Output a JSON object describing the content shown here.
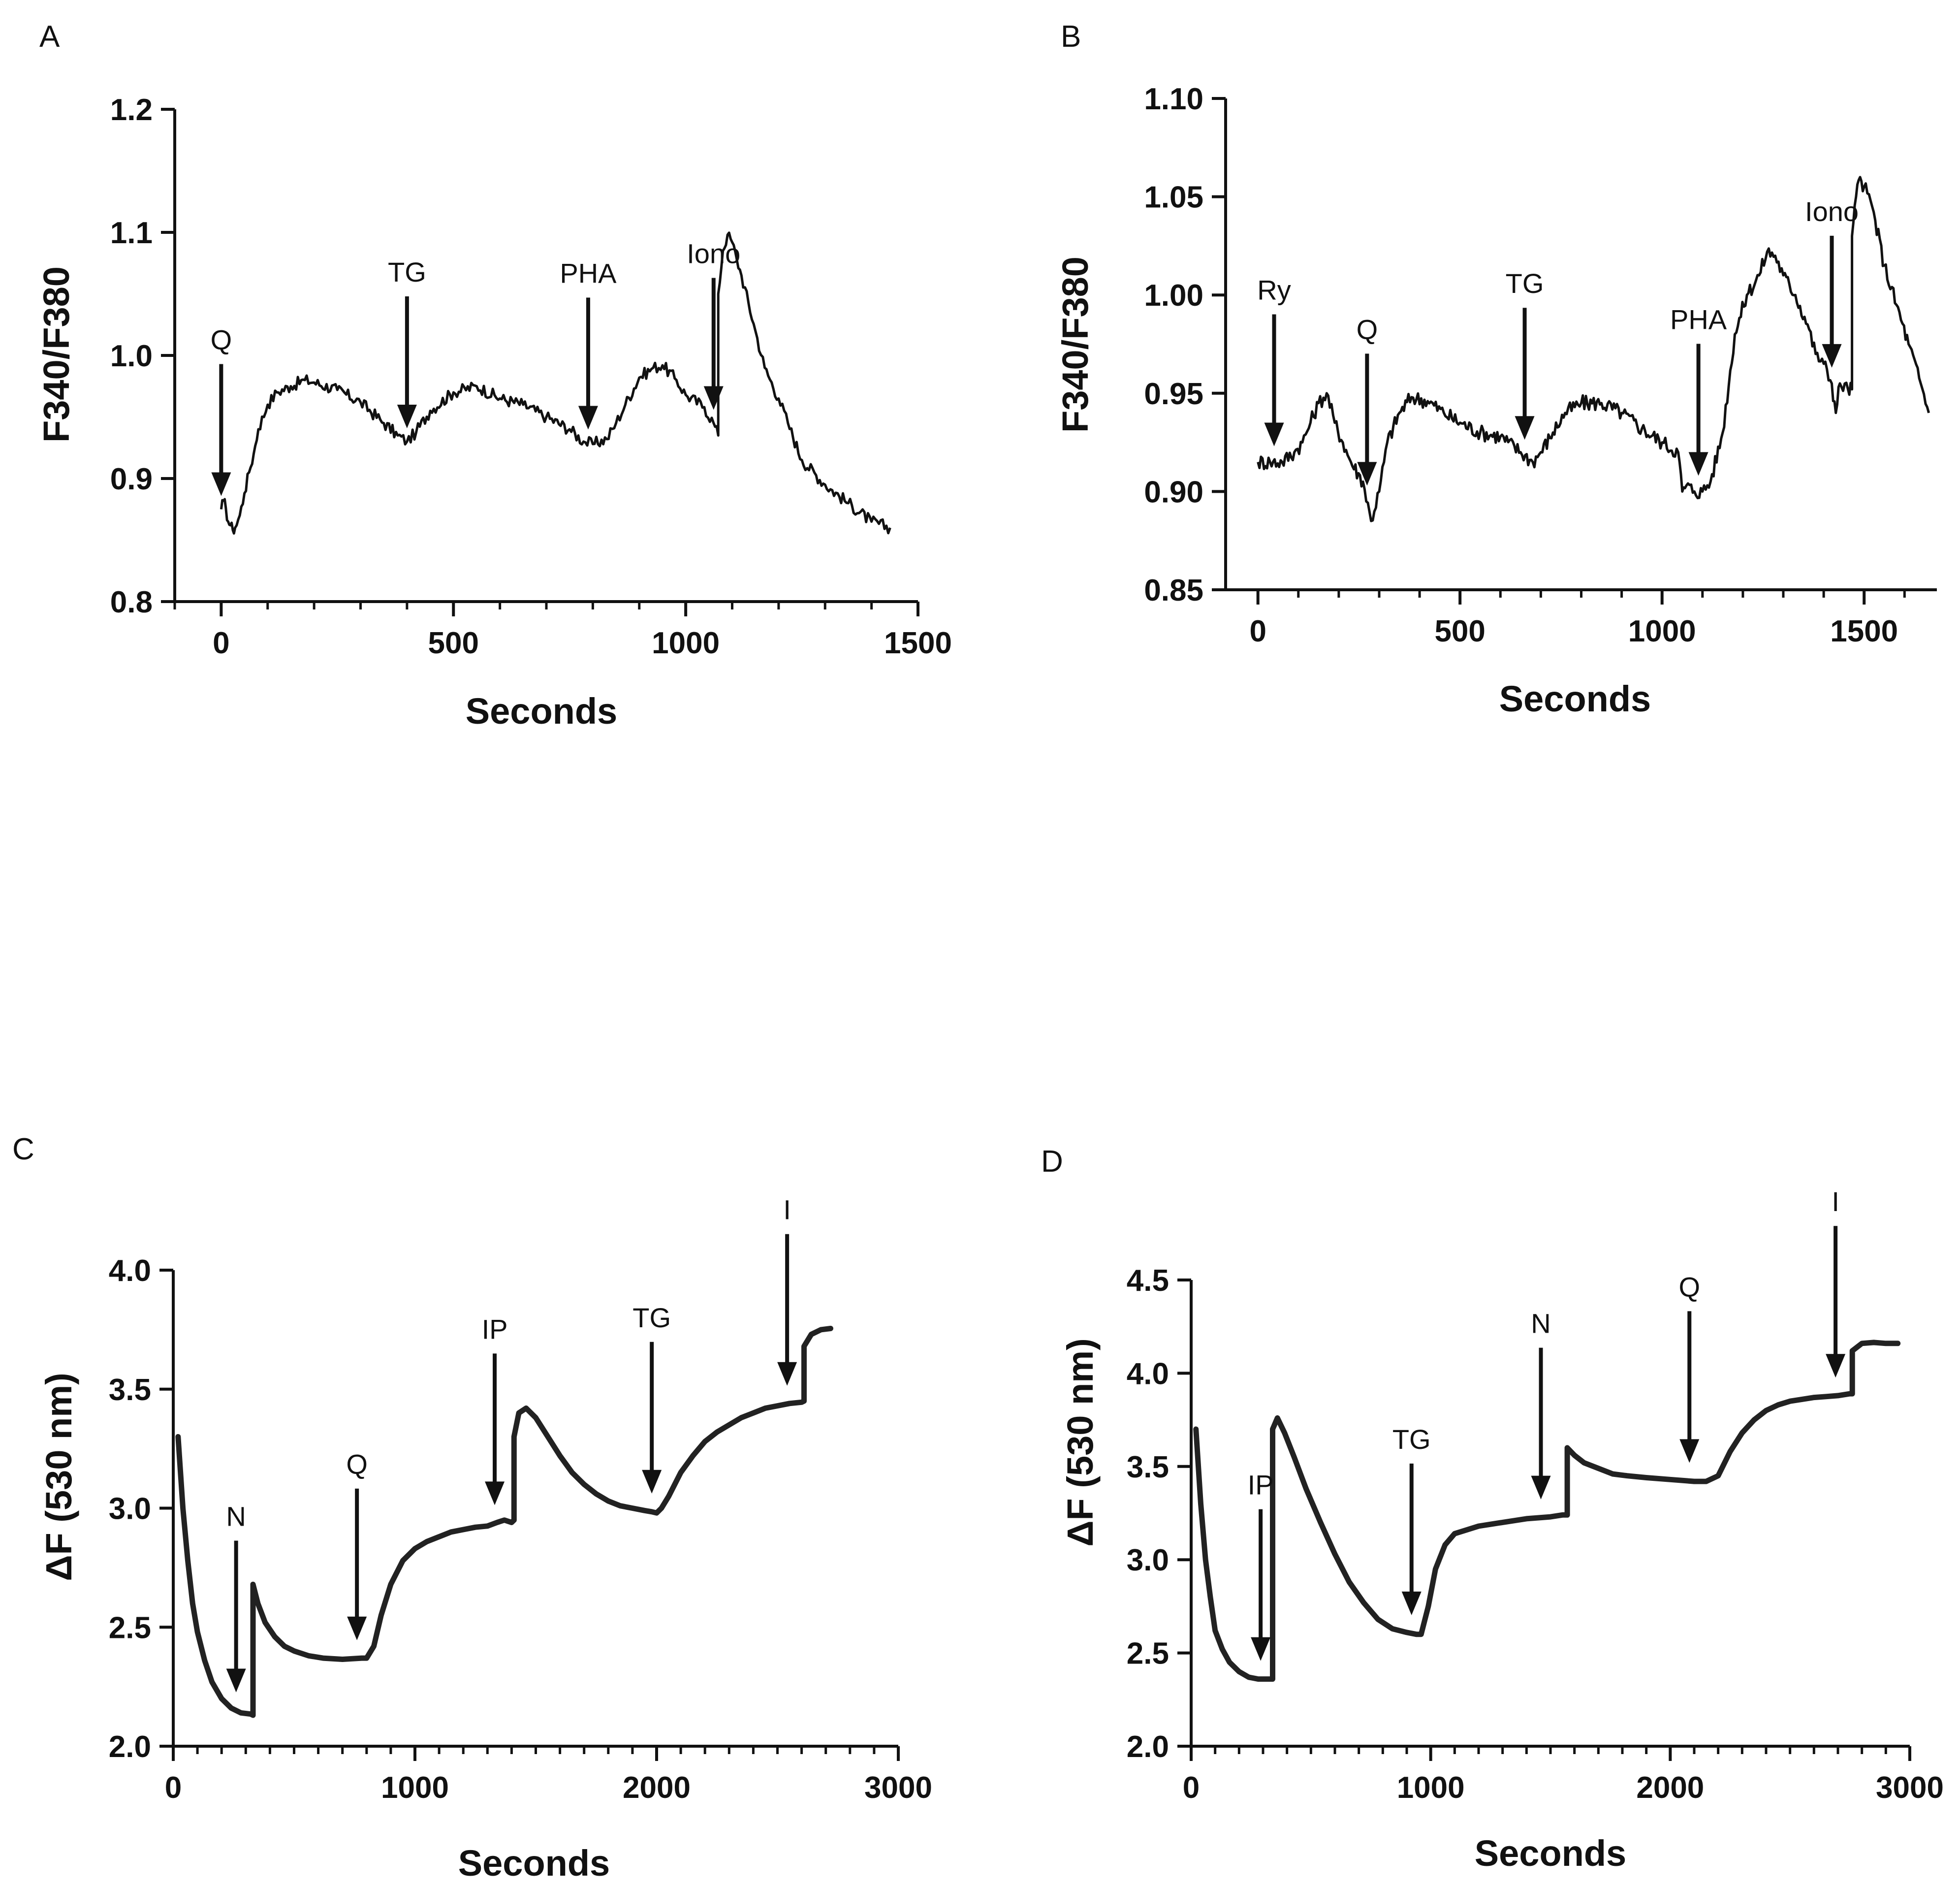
{
  "chart_data": [
    {
      "panel": "A",
      "type": "line",
      "xlabel": "Seconds",
      "ylabel": "F340/F380",
      "xlim": [
        -100,
        1500
      ],
      "ylim": [
        0.8,
        1.2
      ],
      "xticks": [
        0,
        500,
        1000,
        1500
      ],
      "xtick_labels": [
        "0",
        "500",
        "1000",
        "1500"
      ],
      "yticks": [
        0.8,
        0.9,
        1.0,
        1.1,
        1.2
      ],
      "ytick_labels": [
        "0.8",
        "0.9",
        "1.0",
        "1.1",
        "1.2"
      ],
      "x_minor_step": 100,
      "noise": 0.005,
      "series": [
        {
          "x": [
            0,
            5,
            10,
            15,
            20,
            25,
            30,
            40,
            50,
            60,
            70,
            80,
            100,
            120,
            150,
            180,
            200,
            250,
            300,
            350,
            380,
            400,
            420,
            450,
            500,
            550,
            600,
            650,
            700,
            750,
            780,
            800,
            830,
            850,
            870,
            900,
            930,
            950,
            980,
            1000,
            1040,
            1060,
            1070,
            1070,
            1080,
            1090,
            1100,
            1110,
            1120,
            1150,
            1170,
            1200,
            1220,
            1250,
            1300,
            1350,
            1400,
            1440
          ],
          "y": [
            0.875,
            0.882,
            0.876,
            0.865,
            0.862,
            0.858,
            0.86,
            0.87,
            0.888,
            0.905,
            0.92,
            0.94,
            0.96,
            0.97,
            0.975,
            0.98,
            0.978,
            0.972,
            0.962,
            0.945,
            0.935,
            0.93,
            0.938,
            0.955,
            0.97,
            0.975,
            0.965,
            0.96,
            0.95,
            0.94,
            0.93,
            0.928,
            0.932,
            0.945,
            0.96,
            0.982,
            0.99,
            0.992,
            0.98,
            0.968,
            0.958,
            0.945,
            0.935,
            1.05,
            1.085,
            1.098,
            1.092,
            1.078,
            1.065,
            1.02,
            0.99,
            0.965,
            0.945,
            0.915,
            0.895,
            0.88,
            0.865,
            0.86
          ]
        }
      ],
      "annotations": [
        {
          "label": "Q",
          "x": 0
        },
        {
          "label": "TG",
          "x": 400
        },
        {
          "label": "PHA",
          "x": 790
        },
        {
          "label": "Iono",
          "x": 1060
        }
      ]
    },
    {
      "panel": "B",
      "type": "line",
      "xlabel": "Seconds",
      "ylabel": "F340/F380",
      "xlim": [
        -80,
        1680
      ],
      "ylim": [
        0.85,
        1.1
      ],
      "xticks": [
        0,
        500,
        1000,
        1500
      ],
      "xtick_labels": [
        "0",
        "500",
        "1000",
        "1500"
      ],
      "yticks": [
        0.85,
        0.9,
        0.95,
        1.0,
        1.05,
        1.1
      ],
      "ytick_labels": [
        "0.85",
        "0.90",
        "0.95",
        "1.00",
        "1.05",
        "1.10"
      ],
      "x_minor_step": 100,
      "noise": 0.004,
      "series": [
        {
          "x": [
            0,
            30,
            60,
            90,
            110,
            130,
            150,
            170,
            190,
            210,
            230,
            260,
            280,
            300,
            320,
            350,
            380,
            420,
            460,
            500,
            550,
            600,
            650,
            680,
            700,
            730,
            760,
            800,
            850,
            900,
            950,
            1000,
            1040,
            1050,
            1060,
            1080,
            1100,
            1120,
            1150,
            1180,
            1210,
            1240,
            1260,
            1280,
            1300,
            1330,
            1360,
            1380,
            1400,
            1420,
            1430,
            1440,
            1460,
            1470,
            1470,
            1480,
            1490,
            1500,
            1520,
            1550,
            1580,
            1610,
            1640,
            1660
          ],
          "y": [
            0.915,
            0.915,
            0.915,
            0.92,
            0.925,
            0.935,
            0.945,
            0.95,
            0.935,
            0.925,
            0.915,
            0.905,
            0.885,
            0.9,
            0.925,
            0.94,
            0.948,
            0.946,
            0.94,
            0.935,
            0.93,
            0.928,
            0.92,
            0.915,
            0.92,
            0.93,
            0.94,
            0.945,
            0.945,
            0.94,
            0.932,
            0.925,
            0.92,
            0.9,
            0.903,
            0.9,
            0.9,
            0.905,
            0.93,
            0.98,
            1.0,
            1.01,
            1.022,
            1.02,
            1.01,
            1.0,
            0.985,
            0.97,
            0.965,
            0.955,
            0.94,
            0.955,
            0.952,
            0.952,
            1.03,
            1.05,
            1.06,
            1.055,
            1.045,
            1.015,
            0.995,
            0.975,
            0.955,
            0.94
          ]
        }
      ],
      "annotations": [
        {
          "label": "Ry",
          "x": 40
        },
        {
          "label": "Q",
          "x": 270
        },
        {
          "label": "TG",
          "x": 660
        },
        {
          "label": "PHA",
          "x": 1090
        },
        {
          "label": "Iono",
          "x": 1420
        }
      ]
    },
    {
      "panel": "C",
      "type": "line",
      "xlabel": "Seconds",
      "ylabel": "ΔF (530 nm)",
      "xlim": [
        0,
        3000
      ],
      "ylim": [
        2.0,
        4.0
      ],
      "xticks": [
        0,
        1000,
        2000,
        3000
      ],
      "xtick_labels": [
        "0",
        "1000",
        "2000",
        "3000"
      ],
      "yticks": [
        2.0,
        2.5,
        3.0,
        3.5,
        4.0
      ],
      "ytick_labels": [
        "2.0",
        "2.5",
        "3.0",
        "3.5",
        "4.0"
      ],
      "x_minor_step": 100,
      "noise": 0,
      "series": [
        {
          "x": [
            20,
            40,
            60,
            80,
            100,
            130,
            160,
            200,
            240,
            280,
            320,
            330,
            330,
            350,
            380,
            420,
            460,
            500,
            560,
            620,
            700,
            780,
            800,
            830,
            860,
            900,
            950,
            1000,
            1050,
            1100,
            1150,
            1200,
            1250,
            1300,
            1340,
            1370,
            1400,
            1410,
            1410,
            1430,
            1460,
            1500,
            1550,
            1600,
            1650,
            1700,
            1750,
            1800,
            1850,
            1900,
            1950,
            1980,
            2000,
            2020,
            2050,
            2100,
            2150,
            2200,
            2250,
            2300,
            2350,
            2400,
            2450,
            2500,
            2550,
            2600,
            2610,
            2610,
            2640,
            2680,
            2720
          ],
          "y": [
            3.3,
            3.0,
            2.78,
            2.6,
            2.48,
            2.36,
            2.27,
            2.2,
            2.16,
            2.14,
            2.135,
            2.13,
            2.68,
            2.6,
            2.52,
            2.46,
            2.42,
            2.4,
            2.38,
            2.37,
            2.365,
            2.37,
            2.37,
            2.42,
            2.55,
            2.68,
            2.78,
            2.83,
            2.86,
            2.88,
            2.9,
            2.91,
            2.92,
            2.925,
            2.94,
            2.95,
            2.94,
            2.95,
            3.3,
            3.4,
            3.42,
            3.38,
            3.3,
            3.22,
            3.15,
            3.1,
            3.06,
            3.03,
            3.01,
            3.0,
            2.99,
            2.985,
            2.98,
            3.0,
            3.05,
            3.15,
            3.22,
            3.28,
            3.32,
            3.35,
            3.38,
            3.4,
            3.42,
            3.43,
            3.44,
            3.445,
            3.45,
            3.68,
            3.73,
            3.75,
            3.755
          ]
        }
      ],
      "annotations": [
        {
          "label": "N",
          "x": 260
        },
        {
          "label": "Q",
          "x": 760
        },
        {
          "label": "IP",
          "x": 1330
        },
        {
          "label": "TG",
          "x": 1980
        },
        {
          "label": "I",
          "x": 2540
        }
      ]
    },
    {
      "panel": "D",
      "type": "line",
      "xlabel": "Seconds",
      "ylabel": "ΔF (530 nm)",
      "xlim": [
        0,
        3000
      ],
      "ylim": [
        2.0,
        4.5
      ],
      "xticks": [
        0,
        1000,
        2000,
        3000
      ],
      "xtick_labels": [
        "0",
        "1000",
        "2000",
        "3000"
      ],
      "yticks": [
        2.0,
        2.5,
        3.0,
        3.5,
        4.0,
        4.5
      ],
      "ytick_labels": [
        "2.0",
        "2.5",
        "3.0",
        "3.5",
        "4.0",
        "4.5"
      ],
      "x_minor_step": 100,
      "noise": 0,
      "series": [
        {
          "x": [
            20,
            40,
            60,
            80,
            100,
            130,
            160,
            200,
            240,
            280,
            320,
            340,
            340,
            360,
            390,
            430,
            480,
            540,
            600,
            660,
            720,
            780,
            840,
            900,
            940,
            960,
            990,
            1020,
            1060,
            1100,
            1150,
            1200,
            1250,
            1300,
            1350,
            1400,
            1450,
            1500,
            1550,
            1570,
            1570,
            1600,
            1640,
            1700,
            1760,
            1820,
            1900,
            2000,
            2100,
            2150,
            2200,
            2250,
            2300,
            2350,
            2400,
            2450,
            2500,
            2550,
            2600,
            2650,
            2700,
            2750,
            2760,
            2760,
            2800,
            2850,
            2900,
            2950
          ],
          "y": [
            3.7,
            3.3,
            3.0,
            2.8,
            2.62,
            2.52,
            2.45,
            2.4,
            2.37,
            2.36,
            2.36,
            2.36,
            3.7,
            3.76,
            3.68,
            3.55,
            3.38,
            3.2,
            3.03,
            2.88,
            2.77,
            2.68,
            2.63,
            2.61,
            2.6,
            2.6,
            2.75,
            2.95,
            3.08,
            3.14,
            3.16,
            3.18,
            3.19,
            3.2,
            3.21,
            3.22,
            3.225,
            3.23,
            3.24,
            3.24,
            3.6,
            3.56,
            3.52,
            3.49,
            3.46,
            3.45,
            3.44,
            3.43,
            3.42,
            3.42,
            3.45,
            3.58,
            3.68,
            3.75,
            3.8,
            3.83,
            3.85,
            3.86,
            3.87,
            3.875,
            3.88,
            3.89,
            3.89,
            4.12,
            4.16,
            4.165,
            4.16,
            4.16
          ]
        }
      ],
      "annotations": [
        {
          "label": "IP",
          "x": 290
        },
        {
          "label": "TG",
          "x": 920
        },
        {
          "label": "N",
          "x": 1460
        },
        {
          "label": "Q",
          "x": 2080
        },
        {
          "label": "I",
          "x": 2690
        }
      ]
    }
  ]
}
